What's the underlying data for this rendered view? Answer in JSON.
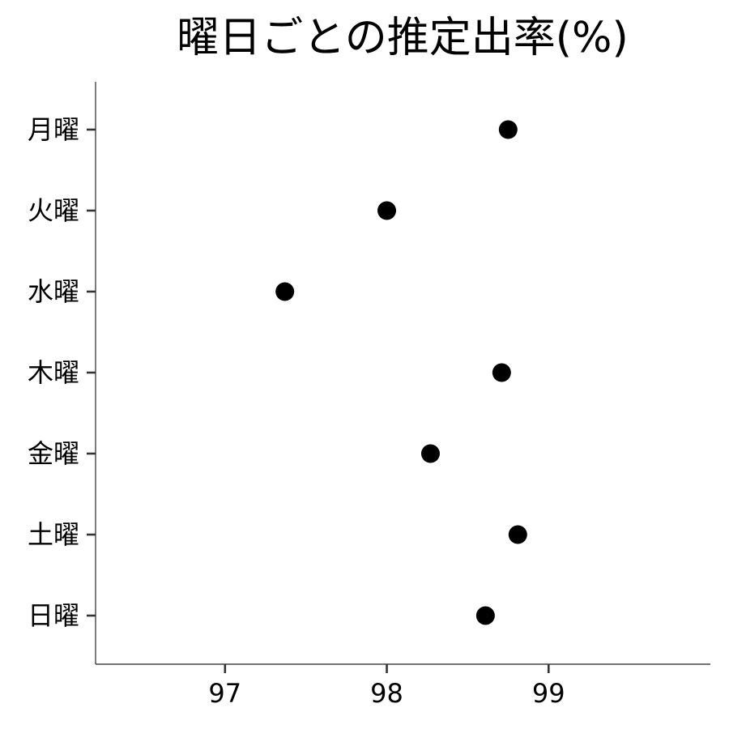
{
  "chart_data": {
    "type": "scatter",
    "title": "曜日ごとの推定出率(%)",
    "xlabel": "",
    "ylabel": "",
    "xlim": [
      96.2,
      100.0
    ],
    "x_ticks": [
      97,
      98,
      99
    ],
    "categories": [
      "月曜",
      "火曜",
      "水曜",
      "木曜",
      "金曜",
      "土曜",
      "日曜"
    ],
    "values": [
      98.75,
      98.0,
      97.37,
      98.71,
      98.27,
      98.81,
      98.61
    ],
    "grid": false,
    "legend": "none",
    "point_color": "#000000"
  }
}
